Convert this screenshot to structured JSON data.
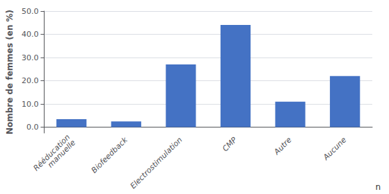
{
  "chart_data": {
    "type": "bar",
    "categories": [
      "Rééducation\nmanuelle",
      "Biofeedback",
      "Electrostimulation",
      "CMP",
      "Autre",
      "Aucune"
    ],
    "values": [
      3.5,
      2.5,
      27.0,
      44.0,
      11.0,
      22.0
    ],
    "color": "#4472C4",
    "ylabel": "Nombre de femmes (en %)",
    "xlabel": "n",
    "ylim": [
      -2.5,
      50
    ],
    "yticks": [
      {
        "value": 0,
        "label": "0.0"
      },
      {
        "value": 10,
        "label": "10.0"
      },
      {
        "value": 20,
        "label": "20.0"
      },
      {
        "value": 30,
        "label": "30.0"
      },
      {
        "value": 40,
        "label": "40.0"
      },
      {
        "value": 50,
        "label": "50.0"
      }
    ],
    "grid": true
  }
}
